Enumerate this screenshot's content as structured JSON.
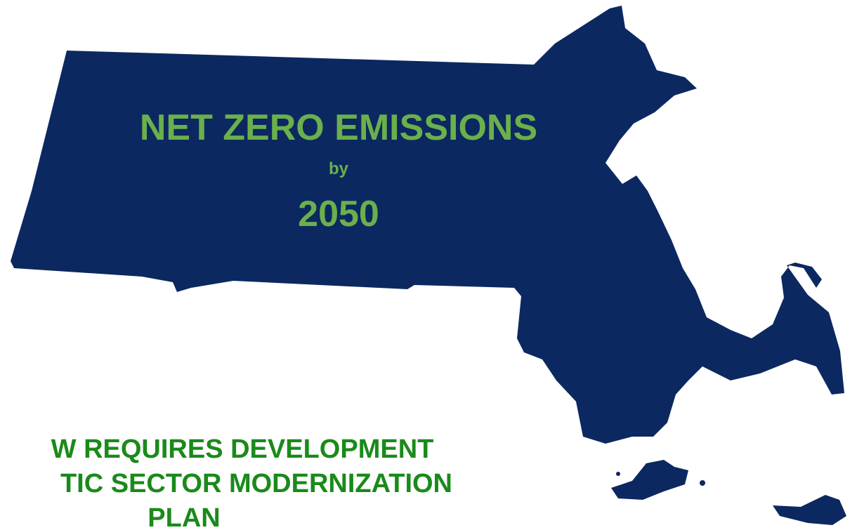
{
  "headline": {
    "title": "NET ZERO EMISSIONS",
    "connector": "by",
    "year": "2050"
  },
  "caption": {
    "lines": [
      "W REQUIRES DEVELOPMENT",
      "TIC SECTOR MODERNIZATION",
      "PLAN"
    ]
  }
}
